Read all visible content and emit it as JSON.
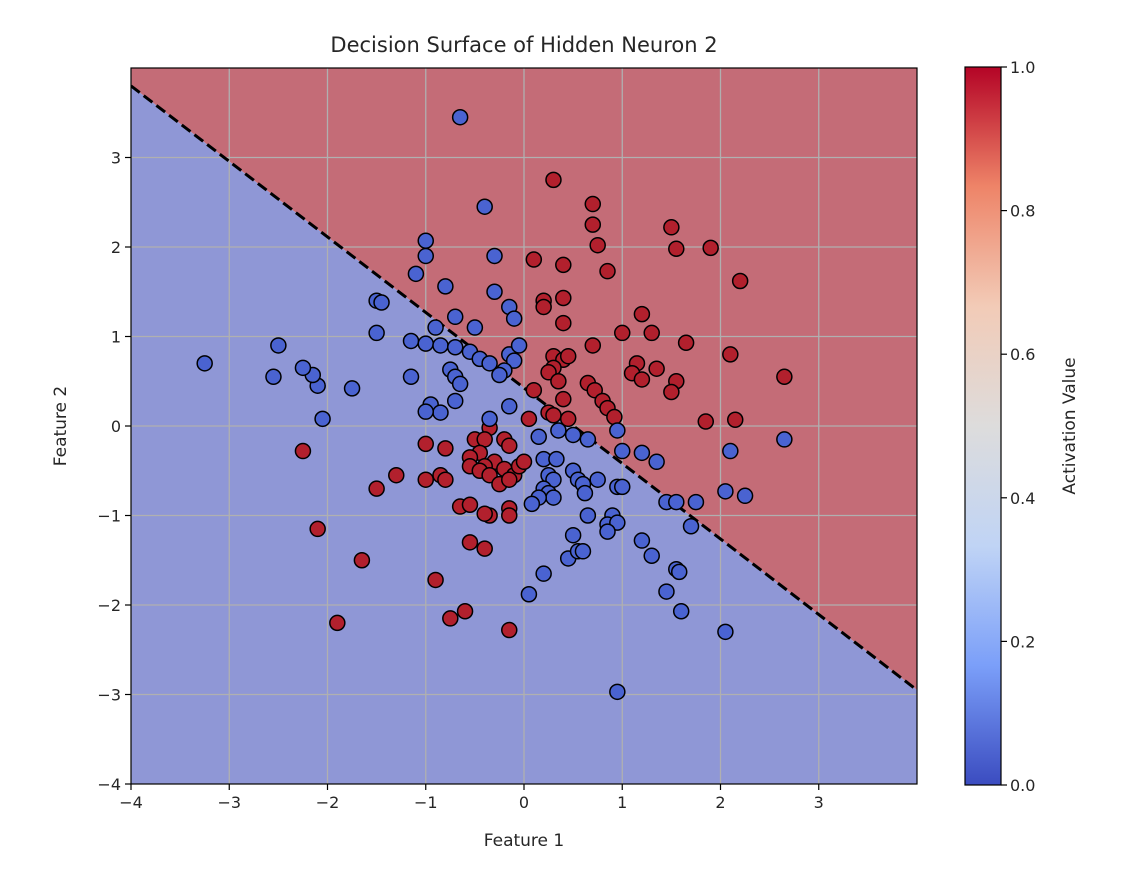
{
  "chart_data": {
    "type": "scatter",
    "title": "Decision Surface of Hidden Neuron 2",
    "xlabel": "Feature 1",
    "ylabel": "Feature 2",
    "xlim": [
      -4,
      4
    ],
    "ylim": [
      -4,
      4
    ],
    "xticks": [
      -4,
      -3,
      -2,
      -1,
      0,
      1,
      2,
      3
    ],
    "xtick_labels": [
      "−4",
      "−3",
      "−2",
      "−1",
      "0",
      "1",
      "2",
      "3"
    ],
    "yticks": [
      -4,
      -3,
      -2,
      -1,
      0,
      1,
      2,
      3
    ],
    "ytick_labels": [
      "−4",
      "−3",
      "−2",
      "−1",
      "0",
      "1",
      "2",
      "3"
    ],
    "grid": true,
    "decision_boundary": {
      "style": "dashed",
      "color": "#000000",
      "points": [
        [
          -4,
          3.8
        ],
        [
          4,
          -2.95
        ]
      ]
    },
    "regions": [
      {
        "class": "high",
        "color": "#c46c77"
      },
      {
        "class": "low",
        "color": "#8f97d6"
      }
    ],
    "colorbar": {
      "label": "Activation Value",
      "range": [
        0,
        1
      ],
      "ticks": [
        0,
        0.2,
        0.4,
        0.6,
        0.8,
        1
      ],
      "tick_labels": [
        "0.0",
        "0.2",
        "0.4",
        "0.6",
        "0.8",
        "1.0"
      ],
      "stops": [
        "#3b4cc0",
        "#7b9ff9",
        "#c0d4f5",
        "#dddcdc",
        "#f2cbb7",
        "#ee8468",
        "#b40426"
      ]
    },
    "series": [
      {
        "color": "#b2202d",
        "points": [
          [
            0.3,
            2.75
          ],
          [
            0.7,
            2.48
          ],
          [
            0.7,
            2.25
          ],
          [
            0.75,
            2.02
          ],
          [
            1.5,
            2.22
          ],
          [
            1.55,
            1.98
          ],
          [
            1.9,
            1.99
          ],
          [
            0.1,
            1.86
          ],
          [
            0.4,
            1.8
          ],
          [
            0.85,
            1.73
          ],
          [
            2.2,
            1.62
          ],
          [
            0.2,
            1.4
          ],
          [
            0.2,
            1.33
          ],
          [
            0.4,
            1.43
          ],
          [
            0.4,
            1.15
          ],
          [
            1.2,
            1.25
          ],
          [
            1.0,
            1.04
          ],
          [
            1.3,
            1.04
          ],
          [
            1.65,
            0.93
          ],
          [
            0.7,
            0.9
          ],
          [
            2.1,
            0.8
          ],
          [
            0.3,
            0.78
          ],
          [
            0.4,
            0.74
          ],
          [
            0.45,
            0.78
          ],
          [
            0.3,
            0.65
          ],
          [
            1.15,
            0.7
          ],
          [
            1.35,
            0.64
          ],
          [
            1.1,
            0.59
          ],
          [
            1.2,
            0.52
          ],
          [
            1.55,
            0.5
          ],
          [
            1.5,
            0.38
          ],
          [
            2.65,
            0.55
          ],
          [
            0.25,
            0.6
          ],
          [
            0.35,
            0.5
          ],
          [
            0.65,
            0.48
          ],
          [
            0.72,
            0.4
          ],
          [
            0.8,
            0.28
          ],
          [
            0.85,
            0.2
          ],
          [
            0.92,
            0.1
          ],
          [
            0.1,
            0.4
          ],
          [
            0.4,
            0.3
          ],
          [
            0.25,
            0.15
          ],
          [
            0.3,
            0.12
          ],
          [
            0.45,
            0.08
          ],
          [
            0.05,
            0.08
          ],
          [
            1.85,
            0.05
          ],
          [
            2.15,
            0.07
          ],
          [
            -0.2,
            -0.15
          ],
          [
            -0.15,
            -0.22
          ],
          [
            -0.35,
            -0.02
          ],
          [
            -0.5,
            -0.15
          ],
          [
            -0.4,
            -0.15
          ],
          [
            -0.45,
            -0.3
          ],
          [
            -0.55,
            -0.35
          ],
          [
            -0.8,
            -0.25
          ],
          [
            -1.0,
            -0.2
          ],
          [
            -0.3,
            -0.4
          ],
          [
            -0.4,
            -0.45
          ],
          [
            -0.55,
            -0.45
          ],
          [
            -0.45,
            -0.5
          ],
          [
            -0.35,
            -0.55
          ],
          [
            -0.2,
            -0.48
          ],
          [
            -0.1,
            -0.55
          ],
          [
            -0.05,
            -0.45
          ],
          [
            0.0,
            -0.4
          ],
          [
            -0.25,
            -0.65
          ],
          [
            -0.15,
            -0.6
          ],
          [
            -0.85,
            -0.55
          ],
          [
            -0.8,
            -0.6
          ],
          [
            -1.0,
            -0.6
          ],
          [
            -1.3,
            -0.55
          ],
          [
            -1.5,
            -0.7
          ],
          [
            -0.65,
            -0.9
          ],
          [
            -0.55,
            -0.88
          ],
          [
            -0.15,
            -0.92
          ],
          [
            -0.35,
            -1.0
          ],
          [
            -0.4,
            -0.98
          ],
          [
            -0.15,
            -1.0
          ],
          [
            -0.55,
            -1.3
          ],
          [
            -0.4,
            -1.37
          ],
          [
            -2.25,
            -0.28
          ],
          [
            -2.1,
            -1.15
          ],
          [
            -1.65,
            -1.5
          ],
          [
            -0.9,
            -1.72
          ],
          [
            -0.6,
            -2.07
          ],
          [
            -0.75,
            -2.15
          ],
          [
            -1.9,
            -2.2
          ],
          [
            -0.15,
            -2.28
          ]
        ]
      },
      {
        "color": "#4a63d1",
        "points": [
          [
            -0.65,
            3.45
          ],
          [
            -0.4,
            2.45
          ],
          [
            -1.0,
            2.07
          ],
          [
            -1.0,
            1.9
          ],
          [
            -0.3,
            1.9
          ],
          [
            -1.1,
            1.7
          ],
          [
            -0.8,
            1.56
          ],
          [
            -0.3,
            1.5
          ],
          [
            -1.5,
            1.4
          ],
          [
            -1.45,
            1.38
          ],
          [
            -0.15,
            1.33
          ],
          [
            -0.1,
            1.2
          ],
          [
            -0.7,
            1.22
          ],
          [
            -0.5,
            1.1
          ],
          [
            -0.9,
            1.1
          ],
          [
            -1.5,
            1.04
          ],
          [
            -1.15,
            0.95
          ],
          [
            -1.0,
            0.92
          ],
          [
            -0.85,
            0.9
          ],
          [
            -0.7,
            0.88
          ],
          [
            -0.55,
            0.83
          ],
          [
            -0.45,
            0.75
          ],
          [
            -0.35,
            0.7
          ],
          [
            -0.15,
            0.8
          ],
          [
            -0.05,
            0.9
          ],
          [
            -0.1,
            0.73
          ],
          [
            -0.2,
            0.62
          ],
          [
            -0.25,
            0.57
          ],
          [
            -0.75,
            0.63
          ],
          [
            -0.7,
            0.55
          ],
          [
            -0.65,
            0.47
          ],
          [
            -0.7,
            0.28
          ],
          [
            -0.95,
            0.24
          ],
          [
            -0.85,
            0.15
          ],
          [
            -1.0,
            0.16
          ],
          [
            -0.35,
            0.08
          ],
          [
            -0.15,
            0.22
          ],
          [
            -1.15,
            0.55
          ],
          [
            -1.75,
            0.42
          ],
          [
            -2.1,
            0.45
          ],
          [
            -2.15,
            0.57
          ],
          [
            -2.25,
            0.65
          ],
          [
            -2.5,
            0.9
          ],
          [
            -2.55,
            0.55
          ],
          [
            -2.05,
            0.08
          ],
          [
            -3.25,
            0.7
          ],
          [
            0.15,
            -0.12
          ],
          [
            0.35,
            -0.05
          ],
          [
            0.5,
            -0.1
          ],
          [
            0.65,
            -0.15
          ],
          [
            0.95,
            -0.05
          ],
          [
            1.0,
            -0.28
          ],
          [
            1.2,
            -0.3
          ],
          [
            1.35,
            -0.4
          ],
          [
            0.2,
            -0.37
          ],
          [
            0.33,
            -0.37
          ],
          [
            0.5,
            -0.5
          ],
          [
            0.55,
            -0.6
          ],
          [
            0.6,
            -0.65
          ],
          [
            0.75,
            -0.6
          ],
          [
            0.62,
            -0.75
          ],
          [
            0.25,
            -0.55
          ],
          [
            0.3,
            -0.6
          ],
          [
            0.2,
            -0.7
          ],
          [
            0.25,
            -0.75
          ],
          [
            0.3,
            -0.8
          ],
          [
            0.15,
            -0.8
          ],
          [
            0.08,
            -0.87
          ],
          [
            0.95,
            -0.68
          ],
          [
            1.0,
            -0.68
          ],
          [
            1.45,
            -0.85
          ],
          [
            1.55,
            -0.85
          ],
          [
            1.75,
            -0.85
          ],
          [
            0.9,
            -1.0
          ],
          [
            0.65,
            -1.0
          ],
          [
            0.85,
            -1.1
          ],
          [
            0.95,
            -1.08
          ],
          [
            1.7,
            -1.12
          ],
          [
            0.85,
            -1.18
          ],
          [
            0.5,
            -1.22
          ],
          [
            1.2,
            -1.28
          ],
          [
            1.3,
            -1.45
          ],
          [
            0.45,
            -1.48
          ],
          [
            0.55,
            -1.4
          ],
          [
            0.6,
            -1.4
          ],
          [
            1.55,
            -1.6
          ],
          [
            1.58,
            -1.63
          ],
          [
            0.2,
            -1.65
          ],
          [
            1.45,
            -1.85
          ],
          [
            0.05,
            -1.88
          ],
          [
            1.6,
            -2.07
          ],
          [
            2.05,
            -2.3
          ],
          [
            0.95,
            -2.97
          ],
          [
            2.05,
            -0.73
          ],
          [
            2.25,
            -0.78
          ],
          [
            2.1,
            -0.28
          ],
          [
            2.65,
            -0.15
          ]
        ]
      }
    ]
  }
}
